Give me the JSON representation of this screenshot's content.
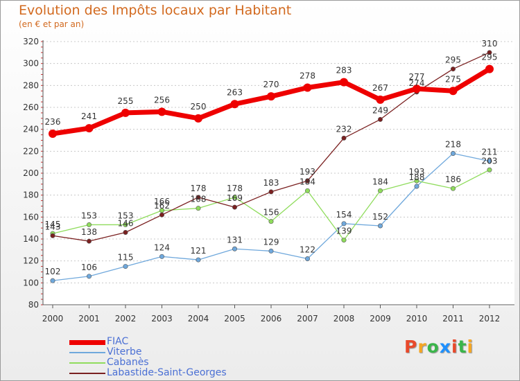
{
  "title": "Evolution des Impôts locaux par Habitant",
  "subtitle": "(en € et par an)",
  "logo": {
    "text": "Proxiti",
    "letter_colors": [
      "#e8492b",
      "#f5a623",
      "#3ab54a",
      "#1e90ff",
      "#e8492b",
      "#3ab54a",
      "#f5a623"
    ]
  },
  "chart_data": {
    "type": "line",
    "title": "Evolution des Impôts locaux par Habitant",
    "subtitle": "(en € et par an)",
    "xlabel": "",
    "ylabel": "",
    "x": [
      "2000",
      "2001",
      "2002",
      "2003",
      "2004",
      "2005",
      "2006",
      "2007",
      "2008",
      "2009",
      "2010",
      "2011",
      "2012"
    ],
    "ylim": [
      80,
      320
    ],
    "yticks": [
      80,
      100,
      120,
      140,
      160,
      180,
      200,
      220,
      240,
      260,
      280,
      300,
      320
    ],
    "grid": "horizontal-dotted",
    "legend_position": "bottom-left",
    "series": [
      {
        "name": "FIAC",
        "color": "#ee0000",
        "values": [
          236,
          241,
          255,
          256,
          250,
          263,
          270,
          278,
          283,
          267,
          277,
          275,
          295
        ]
      },
      {
        "name": "Viterbe",
        "color": "#6fa8dc",
        "values": [
          102,
          106,
          115,
          124,
          121,
          131,
          129,
          122,
          154,
          152,
          188,
          218,
          211
        ]
      },
      {
        "name": "Cabanès",
        "color": "#8fdc5c",
        "values": [
          145,
          153,
          153,
          166,
          168,
          178,
          156,
          184,
          139,
          184,
          193,
          186,
          203
        ]
      },
      {
        "name": "Labastide-Saint-Georges",
        "color": "#7a2020",
        "values": [
          143,
          138,
          146,
          162,
          178,
          169,
          183,
          193,
          232,
          249,
          274,
          295,
          310
        ]
      }
    ]
  }
}
